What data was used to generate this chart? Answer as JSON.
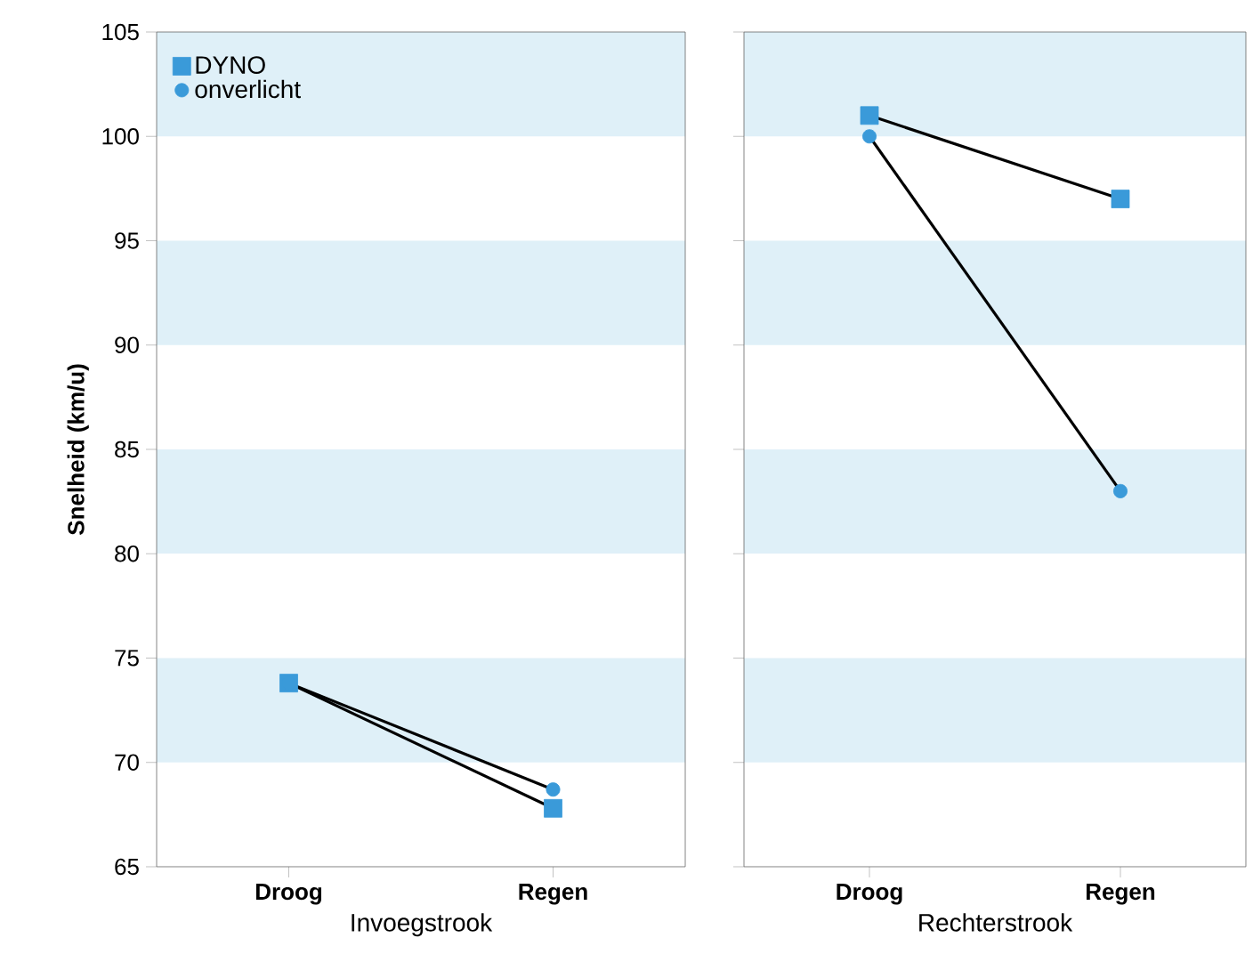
{
  "chart_data": [
    {
      "type": "line",
      "ylabel": "Snelheid (km/u)",
      "xlabel": "Invoegstrook",
      "categories": [
        "Droog",
        "Regen"
      ],
      "ylim": [
        65,
        105
      ],
      "yticks": [
        65,
        70,
        75,
        80,
        85,
        90,
        95,
        100,
        105
      ],
      "legend": "top left",
      "line_style": "solid",
      "bands": [
        {
          "axis": "y",
          "from": 70,
          "to": 75,
          "color": "#dff0f8"
        },
        {
          "axis": "y",
          "from": 80,
          "to": 85,
          "color": "#dff0f8"
        },
        {
          "axis": "y",
          "from": 90,
          "to": 95,
          "color": "#dff0f8"
        },
        {
          "axis": "y",
          "from": 100,
          "to": 105,
          "color": "#dff0f8"
        }
      ],
      "series": [
        {
          "name": "DYNO",
          "color": "#3a9ad9",
          "marker": "square",
          "values": [
            73.8,
            67.8
          ]
        },
        {
          "name": "onverlicht",
          "color": "#3a9ad9",
          "marker": "circle",
          "values": [
            73.8,
            68.7
          ]
        }
      ]
    },
    {
      "type": "line",
      "xlabel": "Rechterstrook",
      "categories": [
        "Droog",
        "Regen"
      ],
      "ylim": [
        65,
        105
      ],
      "yticks": [
        65,
        70,
        75,
        80,
        85,
        90,
        95,
        100,
        105
      ],
      "tick_labels": "x",
      "line_style": "solid",
      "bands": [
        {
          "axis": "y",
          "from": 70,
          "to": 75,
          "color": "#dff0f8"
        },
        {
          "axis": "y",
          "from": 80,
          "to": 85,
          "color": "#dff0f8"
        },
        {
          "axis": "y",
          "from": 90,
          "to": 95,
          "color": "#dff0f8"
        },
        {
          "axis": "y",
          "from": 100,
          "to": 105,
          "color": "#dff0f8"
        }
      ],
      "series": [
        {
          "color": "#3a9ad9",
          "marker": "square",
          "values": [
            101,
            97
          ]
        },
        {
          "color": "#3a9ad9",
          "marker": "circle",
          "values": [
            100,
            83
          ]
        }
      ]
    }
  ]
}
